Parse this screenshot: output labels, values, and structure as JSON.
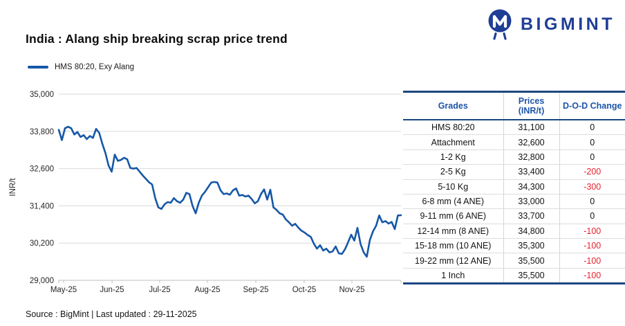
{
  "brand": {
    "name": "BIGMINT",
    "color": "#1F3E95"
  },
  "header": {
    "title": "India : Alang ship breaking scrap price trend"
  },
  "legend": {
    "label": "HMS 80:20, Exy Alang",
    "color": "#1557A6"
  },
  "chart_data": {
    "type": "line",
    "title": "India : Alang ship breaking scrap price trend",
    "xlabel": "",
    "ylabel": "INR/t",
    "ylim": [
      29000,
      35000
    ],
    "yticks": [
      29000,
      30200,
      31400,
      32600,
      33800,
      35000
    ],
    "x_tick_labels": [
      "May-25",
      "Jun-25",
      "Jul-25",
      "Aug-25",
      "Sep-25",
      "Oct-25",
      "Nov-25"
    ],
    "grid": "horizontal",
    "legend_position": "top-left",
    "series": [
      {
        "name": "HMS 80:20, Exy Alang",
        "color": "#1557A6",
        "values": [
          33850,
          33520,
          33900,
          33950,
          33900,
          33700,
          33780,
          33620,
          33680,
          33550,
          33650,
          33590,
          33880,
          33750,
          33400,
          33100,
          32700,
          32500,
          33050,
          32850,
          32880,
          32950,
          32900,
          32620,
          32600,
          32620,
          32500,
          32380,
          32270,
          32160,
          32090,
          31650,
          31350,
          31300,
          31450,
          31520,
          31500,
          31650,
          31550,
          31500,
          31600,
          31820,
          31780,
          31400,
          31160,
          31500,
          31730,
          31850,
          32000,
          32150,
          32170,
          32150,
          31900,
          31780,
          31800,
          31760,
          31900,
          31960,
          31730,
          31750,
          31700,
          31730,
          31620,
          31480,
          31550,
          31780,
          31930,
          31600,
          31920,
          31350,
          31270,
          31160,
          31120,
          30960,
          30870,
          30760,
          30820,
          30700,
          30600,
          30540,
          30460,
          30400,
          30180,
          30020,
          30130,
          29960,
          30020,
          29900,
          29930,
          30090,
          29870,
          29850,
          30000,
          30230,
          30470,
          30280,
          30690,
          30170,
          29900,
          29760,
          30300,
          30580,
          30760,
          31090,
          30870,
          30910,
          30830,
          30880,
          30650,
          31090,
          31100
        ]
      }
    ]
  },
  "table": {
    "columns": [
      "Grades",
      "Prices (INR/t)",
      "D-O-D Change"
    ],
    "rows": [
      [
        "HMS 80:20",
        "31,100",
        "0"
      ],
      [
        "Attachment",
        "32,600",
        "0"
      ],
      [
        "1-2 Kg",
        "32,800",
        "0"
      ],
      [
        "2-5 Kg",
        "33,400",
        "-200"
      ],
      [
        "5-10 Kg",
        "34,300",
        "-300"
      ],
      [
        "6-8 mm (4 ANE)",
        "33,000",
        "0"
      ],
      [
        "9-11 mm (6 ANE)",
        "33,700",
        "0"
      ],
      [
        "12-14 mm (8 ANE)",
        "34,800",
        "-100"
      ],
      [
        "15-18 mm (10 ANE)",
        "35,300",
        "-100"
      ],
      [
        "19-22 mm (12 ANE)",
        "35,500",
        "-100"
      ],
      [
        "1 Inch",
        "35,500",
        "-100"
      ]
    ],
    "negative_color": "#E8212E"
  },
  "footer": {
    "text": "Source : BigMint | Last updated : 29-11-2025"
  },
  "colors": {
    "line_blue": "#1557A6",
    "brand_navy": "#1F3E95",
    "table_border_navy": "#1A4680",
    "header_blue": "#1D54A8",
    "negative_red": "#E8212E",
    "gridline_gray": "#DADADA"
  }
}
